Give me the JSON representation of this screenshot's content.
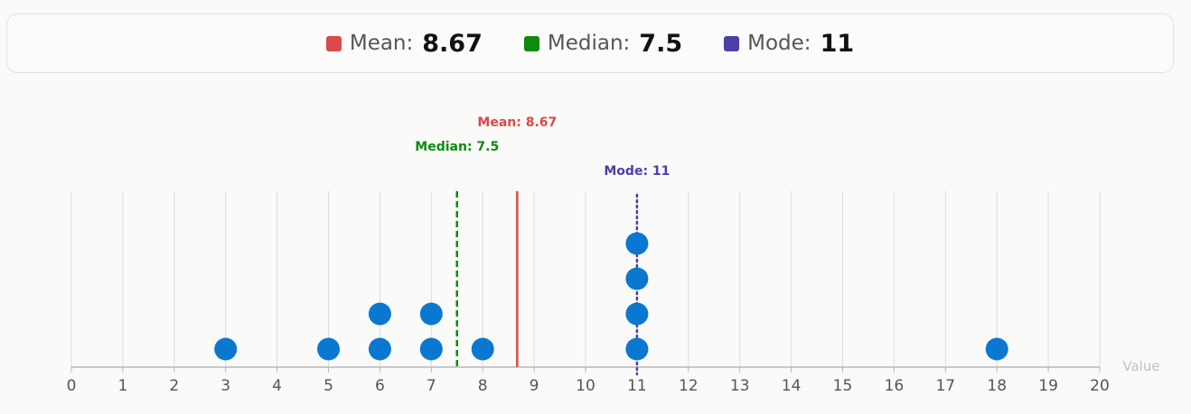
{
  "stats": [
    {
      "key": "mean",
      "label": "Mean:",
      "value": "8.67",
      "color": "#d94a4a"
    },
    {
      "key": "median",
      "label": "Median:",
      "value": "7.5",
      "color": "#0e8a10"
    },
    {
      "key": "mode",
      "label": "Mode:",
      "value": "11",
      "color": "#4b3fa8"
    }
  ],
  "chart_data": {
    "type": "scatter",
    "subtype": "dot-plot",
    "values": [
      3,
      5,
      6,
      6,
      7,
      7,
      8,
      11,
      11,
      11,
      11,
      18
    ],
    "xlim": [
      0,
      20
    ],
    "x_ticks": [
      0,
      1,
      2,
      3,
      4,
      5,
      6,
      7,
      8,
      9,
      10,
      11,
      12,
      13,
      14,
      15,
      16,
      17,
      18,
      19,
      20
    ],
    "xlabel": "Value",
    "grid": true,
    "dot_color": "#0a78d0",
    "reference_lines": [
      {
        "name": "mean",
        "label": "Mean: 8.67",
        "value": 8.67,
        "style": "solid",
        "color": "#d94a4a"
      },
      {
        "name": "median",
        "label": "Median: 7.5",
        "value": 7.5,
        "style": "dashed",
        "color": "#0e8a10"
      },
      {
        "name": "mode",
        "label": "Mode: 11",
        "value": 11,
        "style": "dotted",
        "color": "#4b3fa8"
      }
    ]
  }
}
